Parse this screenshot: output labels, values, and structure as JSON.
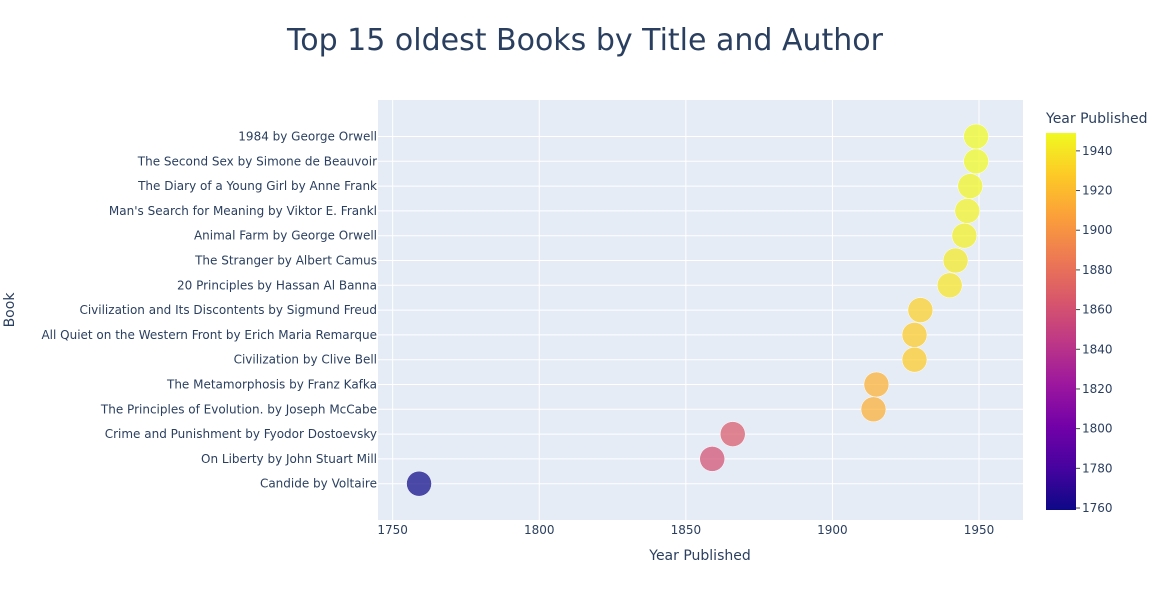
{
  "chart_data": {
    "type": "scatter",
    "title": "Top 15 oldest Books by Title and Author",
    "xlabel": "Year Published",
    "ylabel": "Book",
    "xlim": [
      1745,
      1965
    ],
    "x_ticks": [
      1750,
      1800,
      1850,
      1900,
      1950
    ],
    "grid": true,
    "points": [
      {
        "label": "Candide by Voltaire",
        "x": 1759
      },
      {
        "label": "On Liberty by John Stuart Mill",
        "x": 1859
      },
      {
        "label": "Crime and Punishment by Fyodor Dostoevsky",
        "x": 1866
      },
      {
        "label": "The Principles of Evolution. by Joseph McCabe",
        "x": 1914
      },
      {
        "label": "The Metamorphosis by Franz Kafka",
        "x": 1915
      },
      {
        "label": "Civilization by Clive  Bell",
        "x": 1928
      },
      {
        "label": "All Quiet on the Western Front by Erich Maria Remarque",
        "x": 1928
      },
      {
        "label": "Civilization and Its Discontents by Sigmund Freud",
        "x": 1930
      },
      {
        "label": "20 Principles by Hassan Al Banna",
        "x": 1940
      },
      {
        "label": "The Stranger by Albert Camus",
        "x": 1942
      },
      {
        "label": "Animal Farm by George Orwell",
        "x": 1945
      },
      {
        "label": "Man's Search for Meaning by Viktor E. Frankl",
        "x": 1946
      },
      {
        "label": "The Diary of a Young Girl by Anne Frank",
        "x": 1947
      },
      {
        "label": "The Second Sex by Simone de Beauvoir",
        "x": 1949
      },
      {
        "label": "1984 by George Orwell",
        "x": 1949
      }
    ],
    "colorbar": {
      "title": "Year Published",
      "min": 1759,
      "max": 1949,
      "ticks": [
        1760,
        1780,
        1800,
        1820,
        1840,
        1860,
        1880,
        1900,
        1920,
        1940
      ]
    },
    "colors": {
      "plot_bg": "#e5ecf6",
      "grid": "#ffffff",
      "text": "#2a3f5f",
      "scale": [
        "#0d0887",
        "#46039f",
        "#7201a8",
        "#9c179e",
        "#bd3786",
        "#d8576b",
        "#ed7953",
        "#fb9f3a",
        "#fdca26",
        "#f0f921"
      ]
    }
  }
}
